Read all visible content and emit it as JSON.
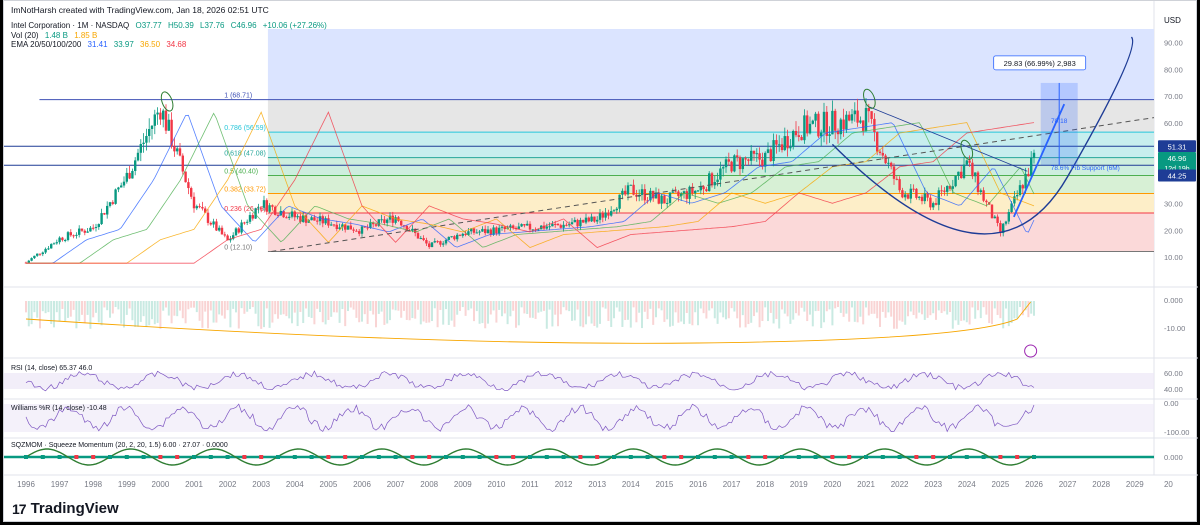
{
  "header": {
    "attribution": "ImNotHarsh created with TradingView.com, Jan 18, 2026 02:51 UTC",
    "symbol_line": "Intel Corporation · 1M · NASDAQ",
    "open": "O37.77",
    "high": "H50.39",
    "low": "L37.76",
    "close": "C46.96",
    "change": "+10.06 (+27.26%)",
    "vol_label": "Vol (20)",
    "vol_val1": "1.48 B",
    "vol_val2": "1.85 B",
    "ema_label": "EMA 20/50/100/200",
    "ema_vals": [
      "31.41",
      "33.97",
      "36.50",
      "34.68"
    ]
  },
  "brand": {
    "logo": "17",
    "name": "TradingView"
  },
  "price_axis": {
    "currency": "USD",
    "ticks": [
      "90.00",
      "80.00",
      "70.00",
      "60.00",
      "50.00",
      "40.00",
      "30.00",
      "20.00",
      "10.00"
    ],
    "badge_blue": "51.31",
    "badge_close": "46.96",
    "badge_countdown": "12d 19h",
    "badge_low": "44.25"
  },
  "volume_axis": {
    "ticks": [
      "0.000",
      "-10.00"
    ]
  },
  "rsi_axis": {
    "ticks": [
      "60.00",
      "40.00"
    ],
    "label": "RSI (14, close)",
    "value": "65.37",
    "value2": "46.0"
  },
  "williams_axis": {
    "ticks": [
      "0.00",
      "-100.00"
    ],
    "label": "Williams %R (14, close)",
    "value": "-10.48"
  },
  "squeeze_axis": {
    "ticks": [
      "0.000"
    ],
    "label": "SQZMOM · Squeeze Momentum (20, 2, 20, 1.5)",
    "value": "6.00 · 27.07 · 0.0000"
  },
  "fib_labels": [
    "1 (68.71)",
    "0.786 (56.59)",
    "0.618 (47.08)",
    "0.5 (40.40)",
    "0.382 (33.72)",
    "0.236 (26.46)",
    "0 (12.10)"
  ],
  "annotations": {
    "target_box": "29.83 (66.99%) 2,983",
    "target_small": "70.18",
    "support_note": "78.6% Fib Support (6M)"
  },
  "x_axis": [
    "1996",
    "1997",
    "1998",
    "1999",
    "2000",
    "2001",
    "2002",
    "2003",
    "2004",
    "2005",
    "2006",
    "2007",
    "2008",
    "2009",
    "2010",
    "2011",
    "2012",
    "2013",
    "2014",
    "2015",
    "2016",
    "2017",
    "2018",
    "2019",
    "2020",
    "2021",
    "2022",
    "2023",
    "2024",
    "2025",
    "2026",
    "2027",
    "2028",
    "2029",
    "20"
  ],
  "colors": {
    "up": "#089981",
    "down": "#f23645",
    "fib_blue": "#2962ff",
    "target": "#2962ff"
  },
  "chart_data": {
    "type": "candlestick",
    "title": "Intel Corporation · 1M · NASDAQ",
    "x": [
      "1996",
      "1997",
      "1998",
      "1999",
      "2000",
      "2001",
      "2002",
      "2003",
      "2004",
      "2005",
      "2006",
      "2007",
      "2008",
      "2009",
      "2010",
      "2011",
      "2012",
      "2013",
      "2014",
      "2015",
      "2016",
      "2017",
      "2018",
      "2019",
      "2020",
      "2021",
      "2022",
      "2023",
      "2024",
      "2025",
      "2026"
    ],
    "close_approx": [
      8,
      17,
      21,
      40,
      66,
      30,
      16,
      30,
      25,
      23,
      20,
      25,
      14,
      19,
      20,
      21,
      22,
      24,
      35,
      31,
      35,
      45,
      47,
      58,
      60,
      62,
      35,
      30,
      45,
      19,
      46.96
    ],
    "ylim": [
      0,
      95
    ],
    "fib_levels": [
      {
        "ratio": "1",
        "price": 68.71
      },
      {
        "ratio": "0.786",
        "price": 56.59
      },
      {
        "ratio": "0.618",
        "price": 47.08
      },
      {
        "ratio": "0.5",
        "price": 40.4
      },
      {
        "ratio": "0.382",
        "price": 33.72
      },
      {
        "ratio": "0.236",
        "price": 26.46
      },
      {
        "ratio": "0",
        "price": 12.1
      }
    ],
    "horizontal_lines": [
      51.31,
      44.25
    ],
    "last_price": 46.96
  }
}
